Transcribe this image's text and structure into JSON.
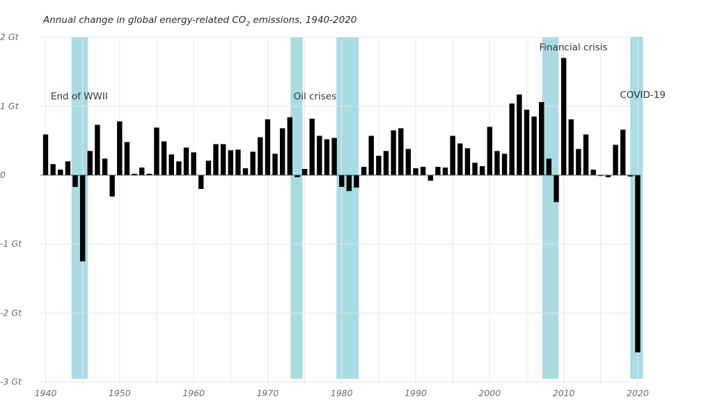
{
  "chart_data": {
    "type": "bar",
    "title": "Annual change in global energy-related CO₂ emissions, 1940-2020",
    "title_main": "Annual change in global energy-related CO",
    "title_sub": "2",
    "title_tail": " emissions, 1940-2020",
    "xlabel": "",
    "ylabel": "",
    "unit": "Gt",
    "ylim": [
      -3,
      2
    ],
    "xlim": [
      1940,
      2020
    ],
    "grid": true,
    "yticks": [
      {
        "value": 2,
        "label": "2 Gt"
      },
      {
        "value": 1,
        "label": "1 Gt"
      },
      {
        "value": 0,
        "label": "0"
      },
      {
        "value": -1,
        "label": "-1 Gt"
      },
      {
        "value": -2,
        "label": "-2 Gt"
      },
      {
        "value": -3,
        "label": "-3 Gt"
      }
    ],
    "xticks": [
      {
        "value": 1940,
        "label": "1940"
      },
      {
        "value": 1950,
        "label": "1950"
      },
      {
        "value": 1960,
        "label": "1960"
      },
      {
        "value": 1970,
        "label": "1970"
      },
      {
        "value": 1980,
        "label": "1980"
      },
      {
        "value": 1990,
        "label": "1990"
      },
      {
        "value": 2000,
        "label": "2000"
      },
      {
        "value": 2010,
        "label": "2010"
      },
      {
        "value": 2020,
        "label": "2020"
      }
    ],
    "x_minor_gridlines": [
      1945,
      1955,
      1965,
      1975,
      1985,
      1995,
      2005,
      2015
    ],
    "bar_color": "#000000",
    "band_color": "#a8dce2",
    "years": [
      1940,
      1941,
      1942,
      1943,
      1944,
      1945,
      1946,
      1947,
      1948,
      1949,
      1950,
      1951,
      1952,
      1953,
      1954,
      1955,
      1956,
      1957,
      1958,
      1959,
      1960,
      1961,
      1962,
      1963,
      1964,
      1965,
      1966,
      1967,
      1968,
      1969,
      1970,
      1971,
      1972,
      1973,
      1974,
      1975,
      1976,
      1977,
      1978,
      1979,
      1980,
      1981,
      1982,
      1983,
      1984,
      1985,
      1986,
      1987,
      1988,
      1989,
      1990,
      1991,
      1992,
      1993,
      1994,
      1995,
      1996,
      1997,
      1998,
      1999,
      2000,
      2001,
      2002,
      2003,
      2004,
      2005,
      2006,
      2007,
      2008,
      2009,
      2010,
      2011,
      2012,
      2013,
      2014,
      2015,
      2016,
      2017,
      2018,
      2019,
      2020
    ],
    "values": [
      0.59,
      0.16,
      0.08,
      0.2,
      -0.17,
      -1.25,
      0.35,
      0.73,
      0.24,
      -0.31,
      0.78,
      0.48,
      0.02,
      0.11,
      0.02,
      0.69,
      0.49,
      0.3,
      0.2,
      0.4,
      0.33,
      -0.2,
      0.21,
      0.45,
      0.45,
      0.36,
      0.37,
      0.1,
      0.34,
      0.55,
      0.81,
      0.31,
      0.68,
      0.84,
      -0.03,
      0.09,
      0.82,
      0.57,
      0.52,
      0.54,
      -0.17,
      -0.23,
      -0.18,
      0.12,
      0.57,
      0.28,
      0.35,
      0.65,
      0.68,
      0.38,
      0.1,
      0.12,
      -0.08,
      0.12,
      0.11,
      0.57,
      0.46,
      0.39,
      0.18,
      0.13,
      0.7,
      0.35,
      0.31,
      1.04,
      1.17,
      0.95,
      0.85,
      1.06,
      0.24,
      -0.39,
      1.7,
      0.81,
      0.38,
      0.59,
      0.08,
      -0.01,
      -0.03,
      0.44,
      0.66,
      -0.02,
      -2.57
    ],
    "bands": [
      {
        "name": "End of WWII",
        "start": 1943.5,
        "end": 1945.7
      },
      {
        "name": "Oil crises (1)",
        "start": 1973.1,
        "end": 1974.7
      },
      {
        "name": "Oil crises (2)",
        "start": 1979.3,
        "end": 1982.3
      },
      {
        "name": "Financial crisis",
        "start": 2007.1,
        "end": 2009.3
      },
      {
        "name": "COVID-19",
        "start": 2019.0,
        "end": 2020.7
      }
    ],
    "annotations": [
      {
        "text": "End of WWII",
        "year": 1940.7,
        "value": 1.1
      },
      {
        "text": "Oil crises",
        "year": 1973.5,
        "value": 1.1
      },
      {
        "text": "Financial crisis",
        "year": 2006.7,
        "value": 1.81
      },
      {
        "text": "COVID-19",
        "year": 2017.6,
        "value": 1.12
      }
    ]
  }
}
